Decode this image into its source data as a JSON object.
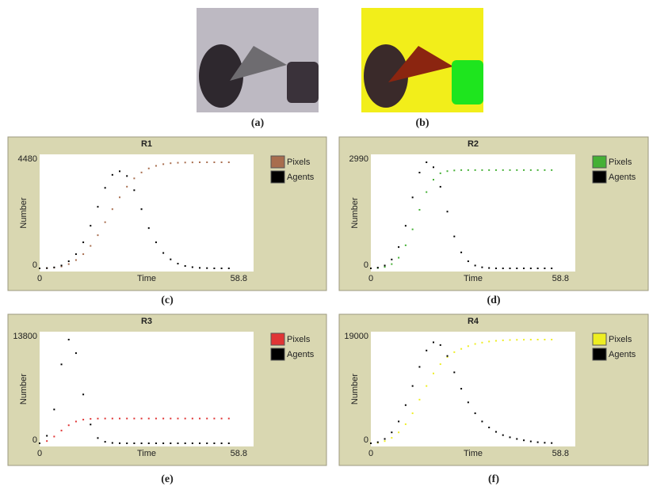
{
  "figure": {
    "images": [
      {
        "label": "(a)"
      },
      {
        "label": "(b)"
      }
    ]
  },
  "chart_data": [
    {
      "type": "scatter",
      "title": "R1",
      "caption": "(c)",
      "x_label": "Time",
      "y_label": "Number",
      "xlim": [
        0,
        58.8
      ],
      "xticks": [
        0,
        58.8
      ],
      "ylim": [
        0,
        4480
      ],
      "yticks": [
        0,
        4480
      ],
      "x": [
        0,
        2,
        4,
        6,
        8,
        10,
        12,
        14,
        16,
        18,
        20,
        22,
        24,
        26,
        28,
        30,
        32,
        34,
        36,
        38,
        40,
        42,
        44,
        46,
        48,
        50,
        52
      ],
      "series": [
        {
          "name": "Pixels",
          "color": "#a86d4e",
          "values": [
            0,
            10,
            30,
            80,
            180,
            350,
            600,
            950,
            1400,
            1950,
            2500,
            3000,
            3450,
            3800,
            4050,
            4220,
            4330,
            4400,
            4440,
            4460,
            4470,
            4475,
            4480,
            4480,
            4480,
            4480,
            4480
          ]
        },
        {
          "name": "Agents",
          "color": "#000000",
          "values": [
            0,
            10,
            40,
            120,
            300,
            600,
            1100,
            1800,
            2600,
            3400,
            3950,
            4100,
            3900,
            3300,
            2500,
            1700,
            1100,
            650,
            380,
            200,
            100,
            50,
            20,
            10,
            0,
            0,
            0
          ]
        }
      ]
    },
    {
      "type": "scatter",
      "title": "R2",
      "caption": "(d)",
      "x_label": "Time",
      "y_label": "Number",
      "xlim": [
        0,
        58.8
      ],
      "xticks": [
        0,
        58.8
      ],
      "ylim": [
        0,
        2990
      ],
      "yticks": [
        0,
        2990
      ],
      "x": [
        0,
        2,
        4,
        6,
        8,
        10,
        12,
        14,
        16,
        18,
        20,
        22,
        24,
        26,
        28,
        30,
        32,
        34,
        36,
        38,
        40,
        42,
        44,
        46,
        48,
        50,
        52
      ],
      "series": [
        {
          "name": "Pixels",
          "color": "#45b035",
          "values": [
            0,
            10,
            40,
            120,
            300,
            650,
            1100,
            1650,
            2150,
            2500,
            2680,
            2740,
            2760,
            2770,
            2770,
            2770,
            2770,
            2770,
            2770,
            2770,
            2770,
            2770,
            2770,
            2770,
            2770,
            2770,
            2770
          ]
        },
        {
          "name": "Agents",
          "color": "#000000",
          "values": [
            0,
            20,
            80,
            250,
            600,
            1200,
            2000,
            2700,
            2990,
            2850,
            2300,
            1600,
            900,
            450,
            200,
            80,
            30,
            10,
            0,
            0,
            0,
            0,
            0,
            0,
            0,
            0,
            0
          ]
        }
      ]
    },
    {
      "type": "scatter",
      "title": "R3",
      "caption": "(e)",
      "x_label": "Time",
      "y_label": "Number",
      "xlim": [
        0,
        58.8
      ],
      "xticks": [
        0,
        58.8
      ],
      "ylim": [
        0,
        13800
      ],
      "yticks": [
        0,
        13800
      ],
      "x": [
        0,
        2,
        4,
        6,
        8,
        10,
        12,
        14,
        16,
        18,
        20,
        22,
        24,
        26,
        28,
        30,
        32,
        34,
        36,
        38,
        40,
        42,
        44,
        46,
        48,
        50,
        52
      ],
      "series": [
        {
          "name": "Pixels",
          "color": "#e03535",
          "values": [
            0,
            300,
            900,
            1700,
            2400,
            2900,
            3150,
            3250,
            3290,
            3300,
            3300,
            3300,
            3300,
            3300,
            3300,
            3300,
            3300,
            3300,
            3300,
            3300,
            3300,
            3300,
            3300,
            3300,
            3300,
            3300,
            3300
          ]
        },
        {
          "name": "Agents",
          "color": "#000000",
          "values": [
            0,
            1000,
            4500,
            10500,
            13800,
            12000,
            6500,
            2500,
            700,
            200,
            50,
            10,
            0,
            0,
            0,
            0,
            0,
            0,
            0,
            0,
            0,
            0,
            0,
            0,
            0,
            0,
            0
          ]
        }
      ]
    },
    {
      "type": "scatter",
      "title": "R4",
      "caption": "(f)",
      "x_label": "Time",
      "y_label": "Number",
      "xlim": [
        0,
        58.8
      ],
      "xticks": [
        0,
        58.8
      ],
      "ylim": [
        0,
        19000
      ],
      "yticks": [
        0,
        19000
      ],
      "x": [
        0,
        2,
        4,
        6,
        8,
        10,
        12,
        14,
        16,
        18,
        20,
        22,
        24,
        26,
        28,
        30,
        32,
        34,
        36,
        38,
        40,
        42,
        44,
        46,
        48,
        50,
        52
      ],
      "series": [
        {
          "name": "Pixels",
          "color": "#eeee22",
          "values": [
            0,
            100,
            400,
            1000,
            2000,
            3500,
            5500,
            8000,
            10500,
            12800,
            14500,
            15800,
            16700,
            17300,
            17800,
            18200,
            18450,
            18650,
            18780,
            18870,
            18930,
            18960,
            18980,
            18990,
            19000,
            19000,
            19000
          ]
        },
        {
          "name": "Agents",
          "color": "#000000",
          "values": [
            0,
            200,
            800,
            2000,
            4000,
            7000,
            10500,
            14000,
            17000,
            18500,
            18000,
            16000,
            13000,
            10000,
            7500,
            5500,
            4000,
            2900,
            2100,
            1500,
            1100,
            800,
            550,
            350,
            200,
            100,
            50
          ]
        }
      ]
    }
  ]
}
